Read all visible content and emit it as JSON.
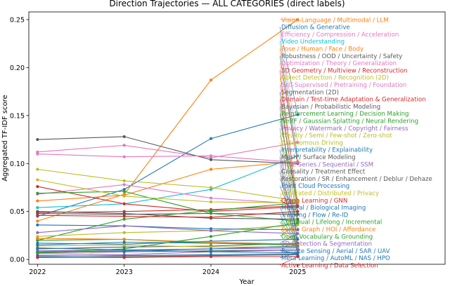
{
  "chart_data": {
    "type": "line",
    "title": "Direction Trajectories — ALL CATEGORIES (direct labels)",
    "xlabel": "Year",
    "ylabel": "Aggregated TF-IDF score",
    "x": [
      2022,
      2023,
      2024,
      2025
    ],
    "xlim": [
      2021.9,
      2026.7
    ],
    "ylim": [
      -0.005,
      0.258
    ],
    "yticks": [
      0.0,
      0.05,
      0.1,
      0.15,
      0.2,
      0.25
    ],
    "ytick_labels": [
      "0.00",
      "0.05",
      "0.10",
      "0.15",
      "0.20",
      "0.25"
    ],
    "xtick_labels": [
      "2022",
      "2023",
      "2024",
      "2025"
    ],
    "grid": false,
    "series": [
      {
        "name": "Vision-Language / Multimodal / LLM",
        "color": "#ff7f0e",
        "values": [
          0.04,
          0.068,
          0.187,
          0.25
        ]
      },
      {
        "name": "Diffusion & Generative",
        "color": "#1f77b4",
        "values": [
          0.045,
          0.073,
          0.126,
          0.151
        ]
      },
      {
        "name": "Efficiency / Compression / Acceleration",
        "color": "#e377c2",
        "values": [
          0.112,
          0.119,
          0.106,
          0.122
        ]
      },
      {
        "name": "Video Understanding",
        "color": "#17becf",
        "values": [
          0.054,
          0.058,
          0.073,
          0.108
        ]
      },
      {
        "name": "Pose / Human / Face / Body",
        "color": "#ff7f0e",
        "values": [
          0.061,
          0.067,
          0.094,
          0.102
        ]
      },
      {
        "name": "Robustness / OOD / Uncertainty / Safety",
        "color": "#595959",
        "values": [
          0.125,
          0.128,
          0.104,
          0.1
        ]
      },
      {
        "name": "Optimization / Theory / Generalization",
        "color": "#e377c2",
        "values": [
          0.11,
          0.107,
          0.108,
          0.101
        ]
      },
      {
        "name": "3D Geometry / Multiview / Reconstruction",
        "color": "#d62728",
        "values": [
          0.049,
          0.05,
          0.052,
          0.056
        ]
      },
      {
        "name": "Object Detection / Recognition (2D)",
        "color": "#bcbd22",
        "values": [
          0.094,
          0.082,
          0.075,
          0.061
        ]
      },
      {
        "name": "Self-Supervised / Pretraining / Foundation",
        "color": "#e377c2",
        "values": [
          0.068,
          0.078,
          0.064,
          0.058
        ]
      },
      {
        "name": "Segmentation (2D)",
        "color": "#595959",
        "values": [
          0.048,
          0.047,
          0.048,
          0.047
        ]
      },
      {
        "name": "Domain / Test-time Adaptation & Generalization",
        "color": "#d62728",
        "values": [
          0.076,
          0.058,
          0.05,
          0.055
        ]
      },
      {
        "name": "Bayesian / Probabilistic Modeling",
        "color": "#595959",
        "values": [
          0.011,
          0.013,
          0.014,
          0.017
        ]
      },
      {
        "name": "Reinforcement Learning / Decision Making",
        "color": "#2ca02c",
        "values": [
          0.069,
          0.071,
          0.048,
          0.04
        ]
      },
      {
        "name": "NeRF / Gaussian Splatting / Neural Rendering",
        "color": "#2ca02c",
        "values": [
          0.02,
          0.042,
          0.051,
          0.059
        ]
      },
      {
        "name": "Privacy / Watermark / Copyright / Fairness",
        "color": "#9467bd",
        "values": [
          0.009,
          0.01,
          0.011,
          0.012
        ]
      },
      {
        "name": "Weakly / Semi / Few-shot / Zero-shot",
        "color": "#bcbd22",
        "values": [
          0.083,
          0.066,
          0.06,
          0.059
        ]
      },
      {
        "name": "Autonomous Driving",
        "color": "#bcbd22",
        "values": [
          0.024,
          0.028,
          0.03,
          0.036
        ]
      },
      {
        "name": "Interpretability / Explainability",
        "color": "#1f77b4",
        "values": [
          0.017,
          0.016,
          0.019,
          0.021
        ]
      },
      {
        "name": "Mesh / Surface Modeling",
        "color": "#595959",
        "values": [
          0.007,
          0.008,
          0.009,
          0.01
        ]
      },
      {
        "name": "Time Series / Sequential / SSM",
        "color": "#9467bd",
        "values": [
          0.006,
          0.005,
          0.008,
          0.01
        ]
      },
      {
        "name": "Causality / Treatment Effect",
        "color": "#595959",
        "values": [
          0.004,
          0.003,
          0.004,
          0.005
        ]
      },
      {
        "name": "Restoration / SR / Enhancement / Deblur / Dehaze",
        "color": "#595959",
        "values": [
          0.05,
          0.048,
          0.043,
          0.042
        ]
      },
      {
        "name": "Point Cloud Processing",
        "color": "#1f77b4",
        "values": [
          0.036,
          0.035,
          0.032,
          0.031
        ]
      },
      {
        "name": "Federated / Distributed / Privacy",
        "color": "#bcbd22",
        "values": [
          0.014,
          0.015,
          0.013,
          0.013
        ]
      },
      {
        "name": "Graph Learning / GNN",
        "color": "#d62728",
        "values": [
          0.046,
          0.045,
          0.044,
          0.05
        ]
      },
      {
        "name": "Medical / Biological Imaging",
        "color": "#1f77b4",
        "values": [
          0.015,
          0.018,
          0.017,
          0.016
        ]
      },
      {
        "name": "Tracking / Flow / Re-ID",
        "color": "#1f77b4",
        "values": [
          0.008,
          0.009,
          0.011,
          0.014
        ]
      },
      {
        "name": "Continual / Lifelong / Incremental",
        "color": "#2ca02c",
        "values": [
          0.02,
          0.021,
          0.017,
          0.015
        ]
      },
      {
        "name": "Scene Graph / HOI / Affordance",
        "color": "#ff7f0e",
        "values": [
          0.022,
          0.021,
          0.018,
          0.016
        ]
      },
      {
        "name": "Open-Vocabulary & Grounding",
        "color": "#2ca02c",
        "values": [
          0.007,
          0.011,
          0.024,
          0.038
        ]
      },
      {
        "name": "3D Detection & Segmentation",
        "color": "#9467bd",
        "values": [
          0.028,
          0.035,
          0.03,
          0.027
        ]
      },
      {
        "name": "Remote Sensing / Aerial / SAR / UAV",
        "color": "#1f77b4",
        "values": [
          0.003,
          0.004,
          0.005,
          0.006
        ]
      },
      {
        "name": "Meta Learning / AutoML / NAS / HPO",
        "color": "#1f77b4",
        "values": [
          0.012,
          0.01,
          0.008,
          0.007
        ]
      },
      {
        "name": "Active Learning / Data Selection",
        "color": "#d62728",
        "values": [
          0.002,
          0.002,
          0.003,
          0.003
        ]
      }
    ]
  }
}
